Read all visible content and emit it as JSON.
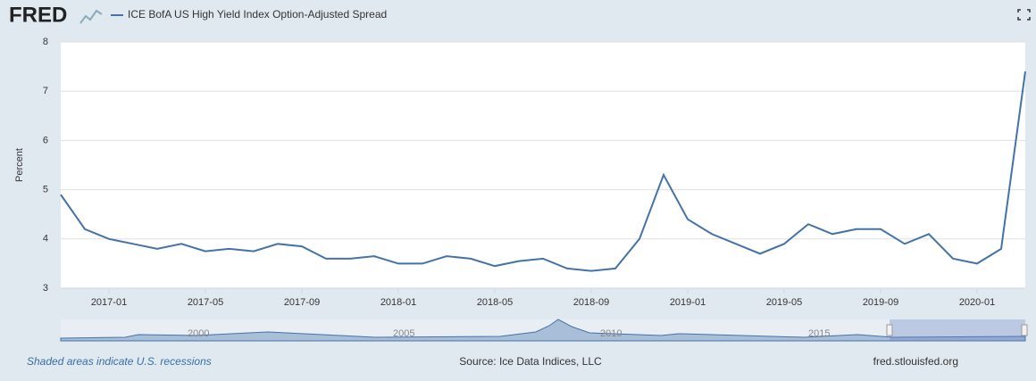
{
  "logo": "FRED",
  "footer": {
    "note": "Shaded areas indicate U.S. recessions",
    "source": "Source: Ice Data Indices, LLC",
    "site": "fred.stlouisfed.org"
  },
  "navigator_labels": [
    "2000",
    "2005",
    "2010",
    "2015"
  ],
  "chart_data": {
    "type": "line",
    "y_label": "Percent",
    "x": [
      "2016-11",
      "2016-12",
      "2017-01",
      "2017-02",
      "2017-03",
      "2017-04",
      "2017-05",
      "2017-06",
      "2017-07",
      "2017-08",
      "2017-09",
      "2017-10",
      "2017-11",
      "2017-12",
      "2018-01",
      "2018-02",
      "2018-03",
      "2018-04",
      "2018-05",
      "2018-06",
      "2018-07",
      "2018-08",
      "2018-09",
      "2018-10",
      "2018-11",
      "2018-12",
      "2019-01",
      "2019-02",
      "2019-03",
      "2019-04",
      "2019-05",
      "2019-06",
      "2019-07",
      "2019-08",
      "2019-09",
      "2019-10",
      "2019-11",
      "2019-12",
      "2020-01",
      "2020-02",
      "2020-03"
    ],
    "series": [
      {
        "name": "ICE BofA US High Yield Index Option-Adjusted Spread",
        "color": "#4572a7",
        "values": [
          4.9,
          4.2,
          4.0,
          3.9,
          3.8,
          3.9,
          3.75,
          3.8,
          3.75,
          3.9,
          3.85,
          3.6,
          3.6,
          3.65,
          3.5,
          3.5,
          3.65,
          3.6,
          3.45,
          3.55,
          3.6,
          3.4,
          3.35,
          3.4,
          4.0,
          5.3,
          4.4,
          4.1,
          3.9,
          3.7,
          3.9,
          4.3,
          4.1,
          4.2,
          4.2,
          3.9,
          4.1,
          3.6,
          3.5,
          3.8,
          7.4
        ]
      }
    ],
    "xlim": [
      "2016-11",
      "2020-03"
    ],
    "xticks": [
      "2017-01",
      "2017-05",
      "2017-09",
      "2018-01",
      "2018-05",
      "2018-09",
      "2019-01",
      "2019-05",
      "2019-09",
      "2020-01"
    ],
    "ylim": [
      3,
      8
    ],
    "yticks": [
      3,
      4,
      5,
      6,
      7,
      8
    ],
    "grid": true
  }
}
